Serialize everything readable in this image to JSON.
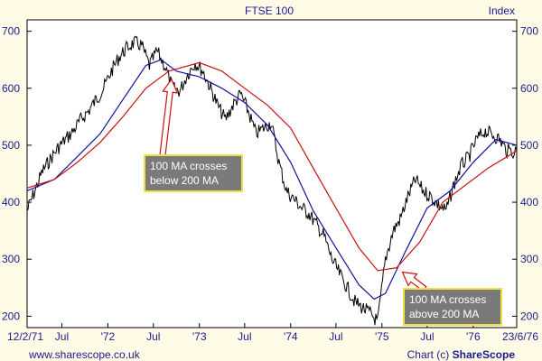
{
  "chart_data": {
    "type": "line",
    "title": "FTSE 100",
    "units_label": "Index",
    "x_axis": {
      "start": "1971-02-12",
      "end": "1976-06-23",
      "ticks": [
        {
          "label": "12/2/71",
          "date": "1971-02-12"
        },
        {
          "label": "Jul",
          "date": "1971-07-01"
        },
        {
          "label": "'72",
          "date": "1972-01-01"
        },
        {
          "label": "Jul",
          "date": "1972-07-01"
        },
        {
          "label": "'73",
          "date": "1973-01-01"
        },
        {
          "label": "Jul",
          "date": "1973-07-01"
        },
        {
          "label": "'74",
          "date": "1974-01-01"
        },
        {
          "label": "Jul",
          "date": "1974-07-01"
        },
        {
          "label": "'75",
          "date": "1975-01-01"
        },
        {
          "label": "Jul",
          "date": "1975-07-01"
        },
        {
          "label": "'76",
          "date": "1976-01-01"
        },
        {
          "label": "23/6/76",
          "date": "1976-06-23"
        }
      ]
    },
    "y_axis": {
      "ylim": [
        180,
        720
      ],
      "ticks": [
        200,
        300,
        400,
        500,
        600,
        700
      ]
    },
    "grid": false,
    "series": [
      {
        "key": "price",
        "color": "#000000",
        "points": [
          [
            "1971-02-12",
            385
          ],
          [
            "1971-03-15",
            420
          ],
          [
            "1971-04-15",
            455
          ],
          [
            "1971-05-15",
            475
          ],
          [
            "1971-06-15",
            495
          ],
          [
            "1971-07-15",
            510
          ],
          [
            "1971-08-15",
            525
          ],
          [
            "1971-09-15",
            545
          ],
          [
            "1971-10-15",
            560
          ],
          [
            "1971-11-15",
            580
          ],
          [
            "1971-12-15",
            600
          ],
          [
            "1972-01-15",
            630
          ],
          [
            "1972-02-15",
            655
          ],
          [
            "1972-03-15",
            670
          ],
          [
            "1972-04-15",
            680
          ],
          [
            "1972-05-15",
            675
          ],
          [
            "1972-06-15",
            640
          ],
          [
            "1972-07-15",
            665
          ],
          [
            "1972-08-15",
            640
          ],
          [
            "1972-09-15",
            600
          ],
          [
            "1972-10-15",
            595
          ],
          [
            "1972-11-15",
            625
          ],
          [
            "1972-12-15",
            645
          ],
          [
            "1973-01-15",
            630
          ],
          [
            "1973-02-15",
            600
          ],
          [
            "1973-03-15",
            570
          ],
          [
            "1973-04-15",
            545
          ],
          [
            "1973-05-15",
            570
          ],
          [
            "1973-06-15",
            590
          ],
          [
            "1973-07-15",
            560
          ],
          [
            "1973-08-15",
            520
          ],
          [
            "1973-09-15",
            530
          ],
          [
            "1973-10-15",
            540
          ],
          [
            "1973-11-15",
            470
          ],
          [
            "1973-12-15",
            420
          ],
          [
            "1974-01-15",
            405
          ],
          [
            "1974-02-15",
            390
          ],
          [
            "1974-03-15",
            380
          ],
          [
            "1974-04-15",
            360
          ],
          [
            "1974-05-15",
            340
          ],
          [
            "1974-06-15",
            300
          ],
          [
            "1974-07-15",
            275
          ],
          [
            "1974-08-15",
            250
          ],
          [
            "1974-09-15",
            225
          ],
          [
            "1974-10-15",
            215
          ],
          [
            "1974-11-15",
            205
          ],
          [
            "1974-12-15",
            190
          ],
          [
            "1975-01-15",
            300
          ],
          [
            "1975-02-15",
            350
          ],
          [
            "1975-03-15",
            370
          ],
          [
            "1975-04-15",
            410
          ],
          [
            "1975-05-15",
            440
          ],
          [
            "1975-06-15",
            420
          ],
          [
            "1975-07-15",
            410
          ],
          [
            "1975-08-15",
            395
          ],
          [
            "1975-09-15",
            385
          ],
          [
            "1975-10-15",
            430
          ],
          [
            "1975-11-15",
            465
          ],
          [
            "1975-12-15",
            480
          ],
          [
            "1976-01-15",
            510
          ],
          [
            "1976-02-15",
            525
          ],
          [
            "1976-03-15",
            520
          ],
          [
            "1976-04-15",
            510
          ],
          [
            "1976-05-15",
            490
          ],
          [
            "1976-06-23",
            490
          ]
        ]
      },
      {
        "key": "ma100",
        "color": "#1010a0",
        "points": [
          [
            "1971-02-12",
            420
          ],
          [
            "1971-06-01",
            440
          ],
          [
            "1971-09-01",
            480
          ],
          [
            "1971-12-01",
            520
          ],
          [
            "1972-03-01",
            580
          ],
          [
            "1972-06-01",
            640
          ],
          [
            "1972-08-01",
            650
          ],
          [
            "1972-10-01",
            630
          ],
          [
            "1973-01-01",
            620
          ],
          [
            "1973-04-01",
            600
          ],
          [
            "1973-07-01",
            575
          ],
          [
            "1973-10-01",
            535
          ],
          [
            "1974-01-01",
            470
          ],
          [
            "1974-04-01",
            385
          ],
          [
            "1974-07-01",
            320
          ],
          [
            "1974-10-01",
            255
          ],
          [
            "1974-12-01",
            230
          ],
          [
            "1975-01-15",
            240
          ],
          [
            "1975-04-01",
            310
          ],
          [
            "1975-07-01",
            390
          ],
          [
            "1975-10-01",
            420
          ],
          [
            "1976-01-01",
            470
          ],
          [
            "1976-04-01",
            510
          ],
          [
            "1976-06-23",
            500
          ]
        ]
      },
      {
        "key": "ma200",
        "color": "#cc1010",
        "points": [
          [
            "1971-02-12",
            425
          ],
          [
            "1971-06-01",
            440
          ],
          [
            "1971-09-01",
            470
          ],
          [
            "1971-12-01",
            505
          ],
          [
            "1972-03-01",
            550
          ],
          [
            "1972-06-01",
            600
          ],
          [
            "1972-09-01",
            630
          ],
          [
            "1973-01-01",
            645
          ],
          [
            "1973-04-01",
            630
          ],
          [
            "1973-07-01",
            600
          ],
          [
            "1973-10-01",
            570
          ],
          [
            "1974-01-01",
            530
          ],
          [
            "1974-04-01",
            460
          ],
          [
            "1974-07-01",
            390
          ],
          [
            "1974-10-01",
            320
          ],
          [
            "1974-12-15",
            280
          ],
          [
            "1975-03-01",
            285
          ],
          [
            "1975-06-01",
            330
          ],
          [
            "1975-09-01",
            400
          ],
          [
            "1975-12-01",
            430
          ],
          [
            "1976-03-01",
            460
          ],
          [
            "1976-06-23",
            490
          ]
        ]
      }
    ],
    "annotations": [
      {
        "key": "cross_down",
        "lines": [
          "100 MA crosses",
          "below 200 MA"
        ],
        "date": "1972-09-15",
        "value": 628
      },
      {
        "key": "cross_up",
        "lines": [
          "100 MA crosses",
          "above 200 MA"
        ],
        "date": "1975-03-01",
        "value": 285
      }
    ]
  },
  "footer": {
    "website": "www.sharescope.co.uk",
    "credit_prefix": "Chart (c) ",
    "brand_bold": "Share",
    "brand_rest": "Scope"
  },
  "colors": {
    "background": "#fffbe6",
    "plot_background": "#ffffff",
    "text": "#1a1a8c",
    "callout_fill": "#7a7a7a",
    "callout_border": "#f0e040",
    "arrow": "#cc1010"
  }
}
